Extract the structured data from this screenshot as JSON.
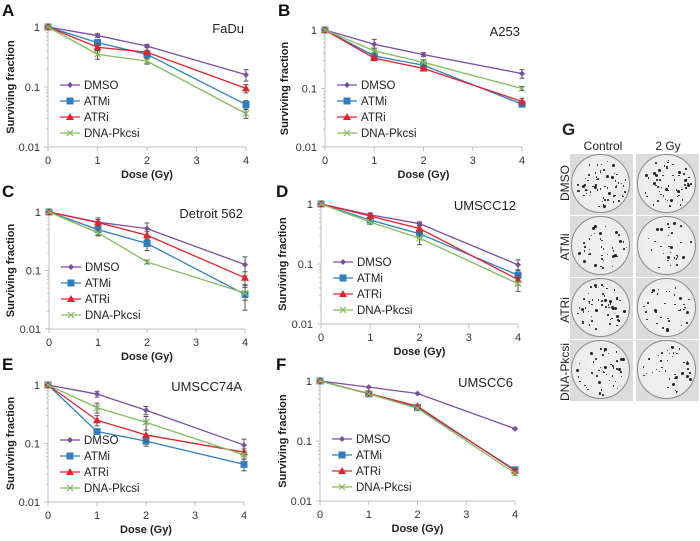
{
  "figure": {
    "ylabel": "Surviving fraction",
    "xlabel": "Dose (Gy)"
  },
  "chart_data": [
    {
      "type": "line",
      "panel": "A",
      "title": "FaDu",
      "xlabel": "Dose (Gy)",
      "ylabel": "Surviving fraction",
      "yscale": "log",
      "xlim": [
        0,
        4
      ],
      "ylim": [
        0.01,
        1
      ],
      "x_ticks": [
        "0",
        "1",
        "2",
        "3",
        "4"
      ],
      "y_ticks": [
        "0.01",
        "0.1",
        "1"
      ],
      "legend_position": "lower-left",
      "x": [
        0,
        1,
        2,
        4
      ],
      "series": [
        {
          "name": "DMSO",
          "color": "#7b4ea3",
          "marker": "diamond",
          "values": [
            1,
            0.72,
            0.48,
            0.16
          ],
          "errors": [
            0,
            0.05,
            0.03,
            0.035
          ]
        },
        {
          "name": "ATMi",
          "color": "#2f7ec1",
          "marker": "square",
          "values": [
            1,
            0.55,
            0.35,
            0.051
          ],
          "errors": [
            0,
            0.05,
            0.04,
            0.008
          ]
        },
        {
          "name": "ATRi",
          "color": "#e3232c",
          "marker": "triangle",
          "values": [
            1,
            0.46,
            0.38,
            0.095
          ],
          "errors": [
            0,
            0.06,
            0.03,
            0.015
          ]
        },
        {
          "name": "DNA-Pkcsi",
          "color": "#82bd5e",
          "marker": "x",
          "values": [
            1,
            0.35,
            0.27,
            0.036
          ],
          "errors": [
            0,
            0.06,
            0.03,
            0.006
          ]
        }
      ]
    },
    {
      "type": "line",
      "panel": "B",
      "title": "A253",
      "xlabel": "Dose (Gy)",
      "ylabel": "Surviving fraction",
      "yscale": "log",
      "xlim": [
        0,
        4
      ],
      "ylim": [
        0.01,
        1
      ],
      "x_ticks": [
        "0",
        "1",
        "2",
        "3",
        "4"
      ],
      "y_ticks": [
        "0.01",
        "0.1",
        "1"
      ],
      "legend_position": "lower-left",
      "x": [
        0,
        1,
        2,
        4
      ],
      "series": [
        {
          "name": "DMSO",
          "color": "#7b4ea3",
          "marker": "diamond",
          "values": [
            1,
            0.57,
            0.38,
            0.18
          ],
          "errors": [
            0,
            0.12,
            0.03,
            0.03
          ]
        },
        {
          "name": "ATMi",
          "color": "#2f7ec1",
          "marker": "square",
          "values": [
            1,
            0.36,
            0.25,
            0.054
          ],
          "errors": [
            0,
            0.03,
            0.02,
            0.005
          ]
        },
        {
          "name": "ATRi",
          "color": "#e3232c",
          "marker": "triangle",
          "values": [
            1,
            0.33,
            0.22,
            0.06
          ],
          "errors": [
            0,
            0.03,
            0.02,
            0.008
          ]
        },
        {
          "name": "DNA-Pkcsi",
          "color": "#82bd5e",
          "marker": "x",
          "values": [
            1,
            0.44,
            0.28,
            0.1
          ],
          "errors": [
            0,
            0.05,
            0.03,
            0.008
          ]
        }
      ]
    },
    {
      "type": "line",
      "panel": "C",
      "title": "Detroit 562",
      "xlabel": "Dose (Gy)",
      "ylabel": "Surviving fraction",
      "yscale": "log",
      "xlim": [
        0,
        4
      ],
      "ylim": [
        0.01,
        1
      ],
      "x_ticks": [
        "0",
        "1",
        "2",
        "3",
        "4"
      ],
      "y_ticks": [
        "0.01",
        "0.1",
        "1"
      ],
      "legend_position": "lower-left",
      "x": [
        0,
        1,
        2,
        4
      ],
      "series": [
        {
          "name": "DMSO",
          "color": "#7b4ea3",
          "marker": "diamond",
          "values": [
            1,
            0.67,
            0.52,
            0.126
          ],
          "errors": [
            0,
            0.12,
            0.13,
            0.045
          ]
        },
        {
          "name": "ATMi",
          "color": "#2f7ec1",
          "marker": "square",
          "values": [
            1,
            0.5,
            0.29,
            0.039
          ],
          "errors": [
            0,
            0.1,
            0.07,
            0.018
          ]
        },
        {
          "name": "ATRi",
          "color": "#e3232c",
          "marker": "triangle",
          "values": [
            1,
            0.66,
            0.4,
            0.075
          ],
          "errors": [
            0,
            0.08,
            0.06,
            0.02
          ]
        },
        {
          "name": "DNA-Pkcsi",
          "color": "#82bd5e",
          "marker": "x",
          "values": [
            1,
            0.44,
            0.14,
            0.041
          ],
          "errors": [
            0,
            0.05,
            0.01,
            0.01
          ]
        }
      ]
    },
    {
      "type": "line",
      "panel": "D",
      "title": "UMSCC12",
      "xlabel": "Dose (Gy)",
      "ylabel": "Surviving fraction",
      "yscale": "log",
      "xlim": [
        0,
        4
      ],
      "ylim": [
        0.01,
        1
      ],
      "x_ticks": [
        "0",
        "1",
        "2",
        "3",
        "4"
      ],
      "y_ticks": [
        "0.01",
        "0.1",
        "1"
      ],
      "legend_position": "lower-left",
      "x": [
        0,
        1,
        2,
        4
      ],
      "series": [
        {
          "name": "DMSO",
          "color": "#7b4ea3",
          "marker": "diamond",
          "values": [
            1,
            0.66,
            0.47,
            0.097
          ],
          "errors": [
            0,
            0.05,
            0.03,
            0.02
          ]
        },
        {
          "name": "ATMi",
          "color": "#2f7ec1",
          "marker": "square",
          "values": [
            1,
            0.54,
            0.32,
            0.065
          ],
          "errors": [
            0,
            0.04,
            0.05,
            0.015
          ]
        },
        {
          "name": "ATRi",
          "color": "#e3232c",
          "marker": "triangle",
          "values": [
            1,
            0.63,
            0.39,
            0.055
          ],
          "errors": [
            0,
            0.05,
            0.04,
            0.01
          ]
        },
        {
          "name": "DNA-Pkcsi",
          "color": "#82bd5e",
          "marker": "x",
          "values": [
            1,
            0.5,
            0.27,
            0.047
          ],
          "errors": [
            0,
            0.04,
            0.06,
            0.012
          ]
        }
      ]
    },
    {
      "type": "line",
      "panel": "E",
      "title": "UMSCC74A",
      "xlabel": "Dose (Gy)",
      "ylabel": "Surviving fraction",
      "yscale": "log",
      "xlim": [
        0,
        4
      ],
      "ylim": [
        0.01,
        1
      ],
      "x_ticks": [
        "0",
        "1",
        "2",
        "3",
        "4"
      ],
      "y_ticks": [
        "0.01",
        "0.1",
        "1"
      ],
      "legend_position": "lower-left",
      "x": [
        0,
        1,
        2,
        4
      ],
      "series": [
        {
          "name": "DMSO",
          "color": "#7b4ea3",
          "marker": "diamond",
          "values": [
            1,
            0.7,
            0.37,
            0.094
          ],
          "errors": [
            0,
            0.08,
            0.06,
            0.025
          ]
        },
        {
          "name": "ATMi",
          "color": "#2f7ec1",
          "marker": "square",
          "values": [
            1,
            0.16,
            0.11,
            0.044
          ],
          "errors": [
            0,
            0.01,
            0.02,
            0.01
          ]
        },
        {
          "name": "ATRi",
          "color": "#e3232c",
          "marker": "triangle",
          "values": [
            1,
            0.25,
            0.14,
            0.071
          ],
          "errors": [
            0,
            0.05,
            0.03,
            0.01
          ]
        },
        {
          "name": "DNA-Pkcsi",
          "color": "#82bd5e",
          "marker": "x",
          "values": [
            1,
            0.41,
            0.23,
            0.064
          ],
          "errors": [
            0,
            0.08,
            0.06,
            0.01
          ]
        }
      ]
    },
    {
      "type": "line",
      "panel": "F",
      "title": "UMSCC6",
      "xlabel": "Dose (Gy)",
      "ylabel": "Surviving fraction",
      "yscale": "log",
      "xlim": [
        0,
        4
      ],
      "ylim": [
        0.01,
        1
      ],
      "x_ticks": [
        "0",
        "1",
        "2",
        "3",
        "4"
      ],
      "y_ticks": [
        "0.01",
        "0.1",
        "1"
      ],
      "legend_position": "lower-left",
      "x": [
        0,
        1,
        2,
        4
      ],
      "series": [
        {
          "name": "DMSO",
          "color": "#7b4ea3",
          "marker": "diamond",
          "values": [
            1,
            0.79,
            0.62,
            0.16
          ],
          "errors": [
            0,
            0.01,
            0.01,
            0.005
          ]
        },
        {
          "name": "ATMi",
          "color": "#2f7ec1",
          "marker": "square",
          "values": [
            1,
            0.61,
            0.36,
            0.033
          ],
          "errors": [
            0,
            0.01,
            0.01,
            0.002
          ]
        },
        {
          "name": "ATRi",
          "color": "#e3232c",
          "marker": "triangle",
          "values": [
            1,
            0.62,
            0.38,
            0.032
          ],
          "errors": [
            0,
            0.01,
            0.01,
            0.002
          ]
        },
        {
          "name": "DNA-Pkcsi",
          "color": "#82bd5e",
          "marker": "x",
          "values": [
            1,
            0.61,
            0.35,
            0.029
          ],
          "errors": [
            0,
            0.01,
            0.01,
            0.002
          ]
        }
      ]
    }
  ],
  "panel_g": {
    "letter": "G",
    "columns": [
      "Control",
      "2 Gy"
    ],
    "rows": [
      "DMSO",
      "ATMi",
      "ATRi",
      "DNA-Pkcsi"
    ],
    "image_description": "Crystal-violet stained colony formation plates"
  }
}
